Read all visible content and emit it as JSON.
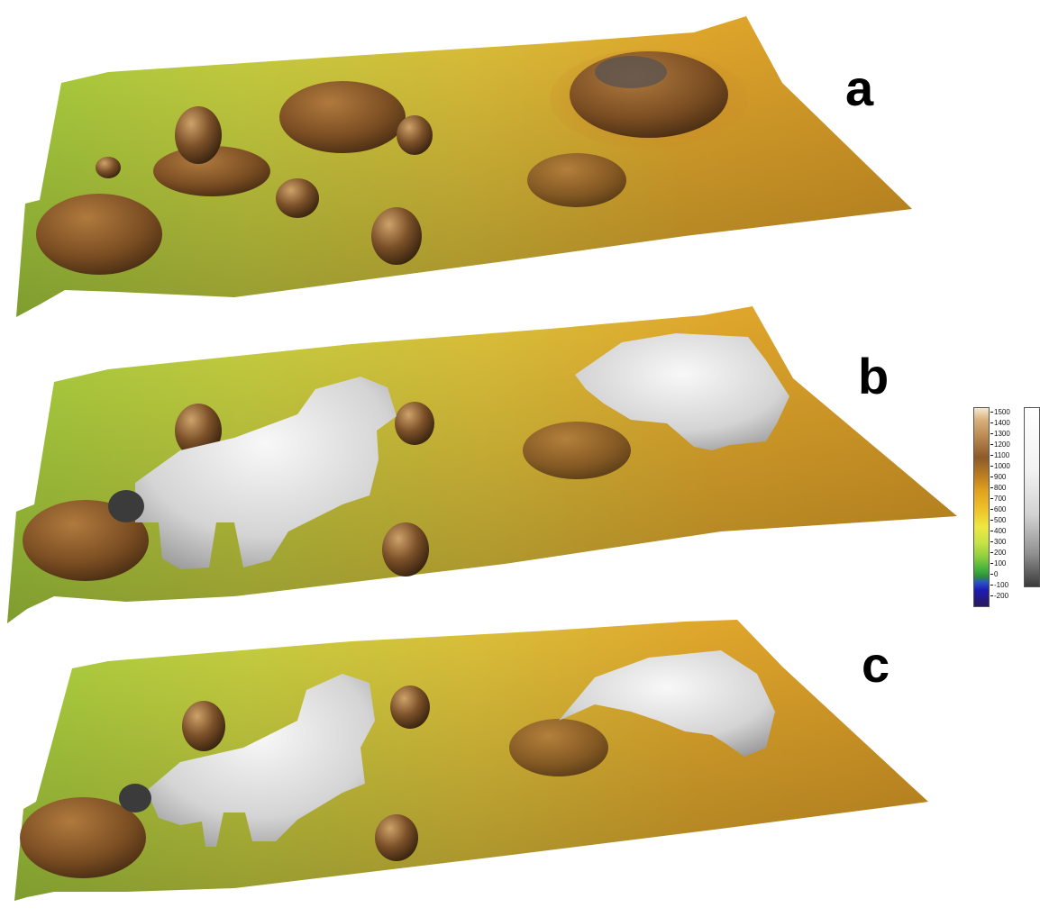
{
  "panels": [
    {
      "label": "a"
    },
    {
      "label": "b"
    },
    {
      "label": "c"
    }
  ],
  "colorbar": {
    "ticks": [
      "1500",
      "1400",
      "1300",
      "1200",
      "1100",
      "1000",
      "900",
      "800",
      "700",
      "600",
      "500",
      "400",
      "300",
      "200",
      "100",
      "0",
      "-100",
      "-200"
    ],
    "colors": {
      "high": "#f5e9cf",
      "brown": "#8c5a2a",
      "orange": "#e3a21d",
      "yellow": "#eee842",
      "green": "#3fae3c",
      "blue": "#1e1bb3",
      "low": "#2a1a5c"
    }
  }
}
